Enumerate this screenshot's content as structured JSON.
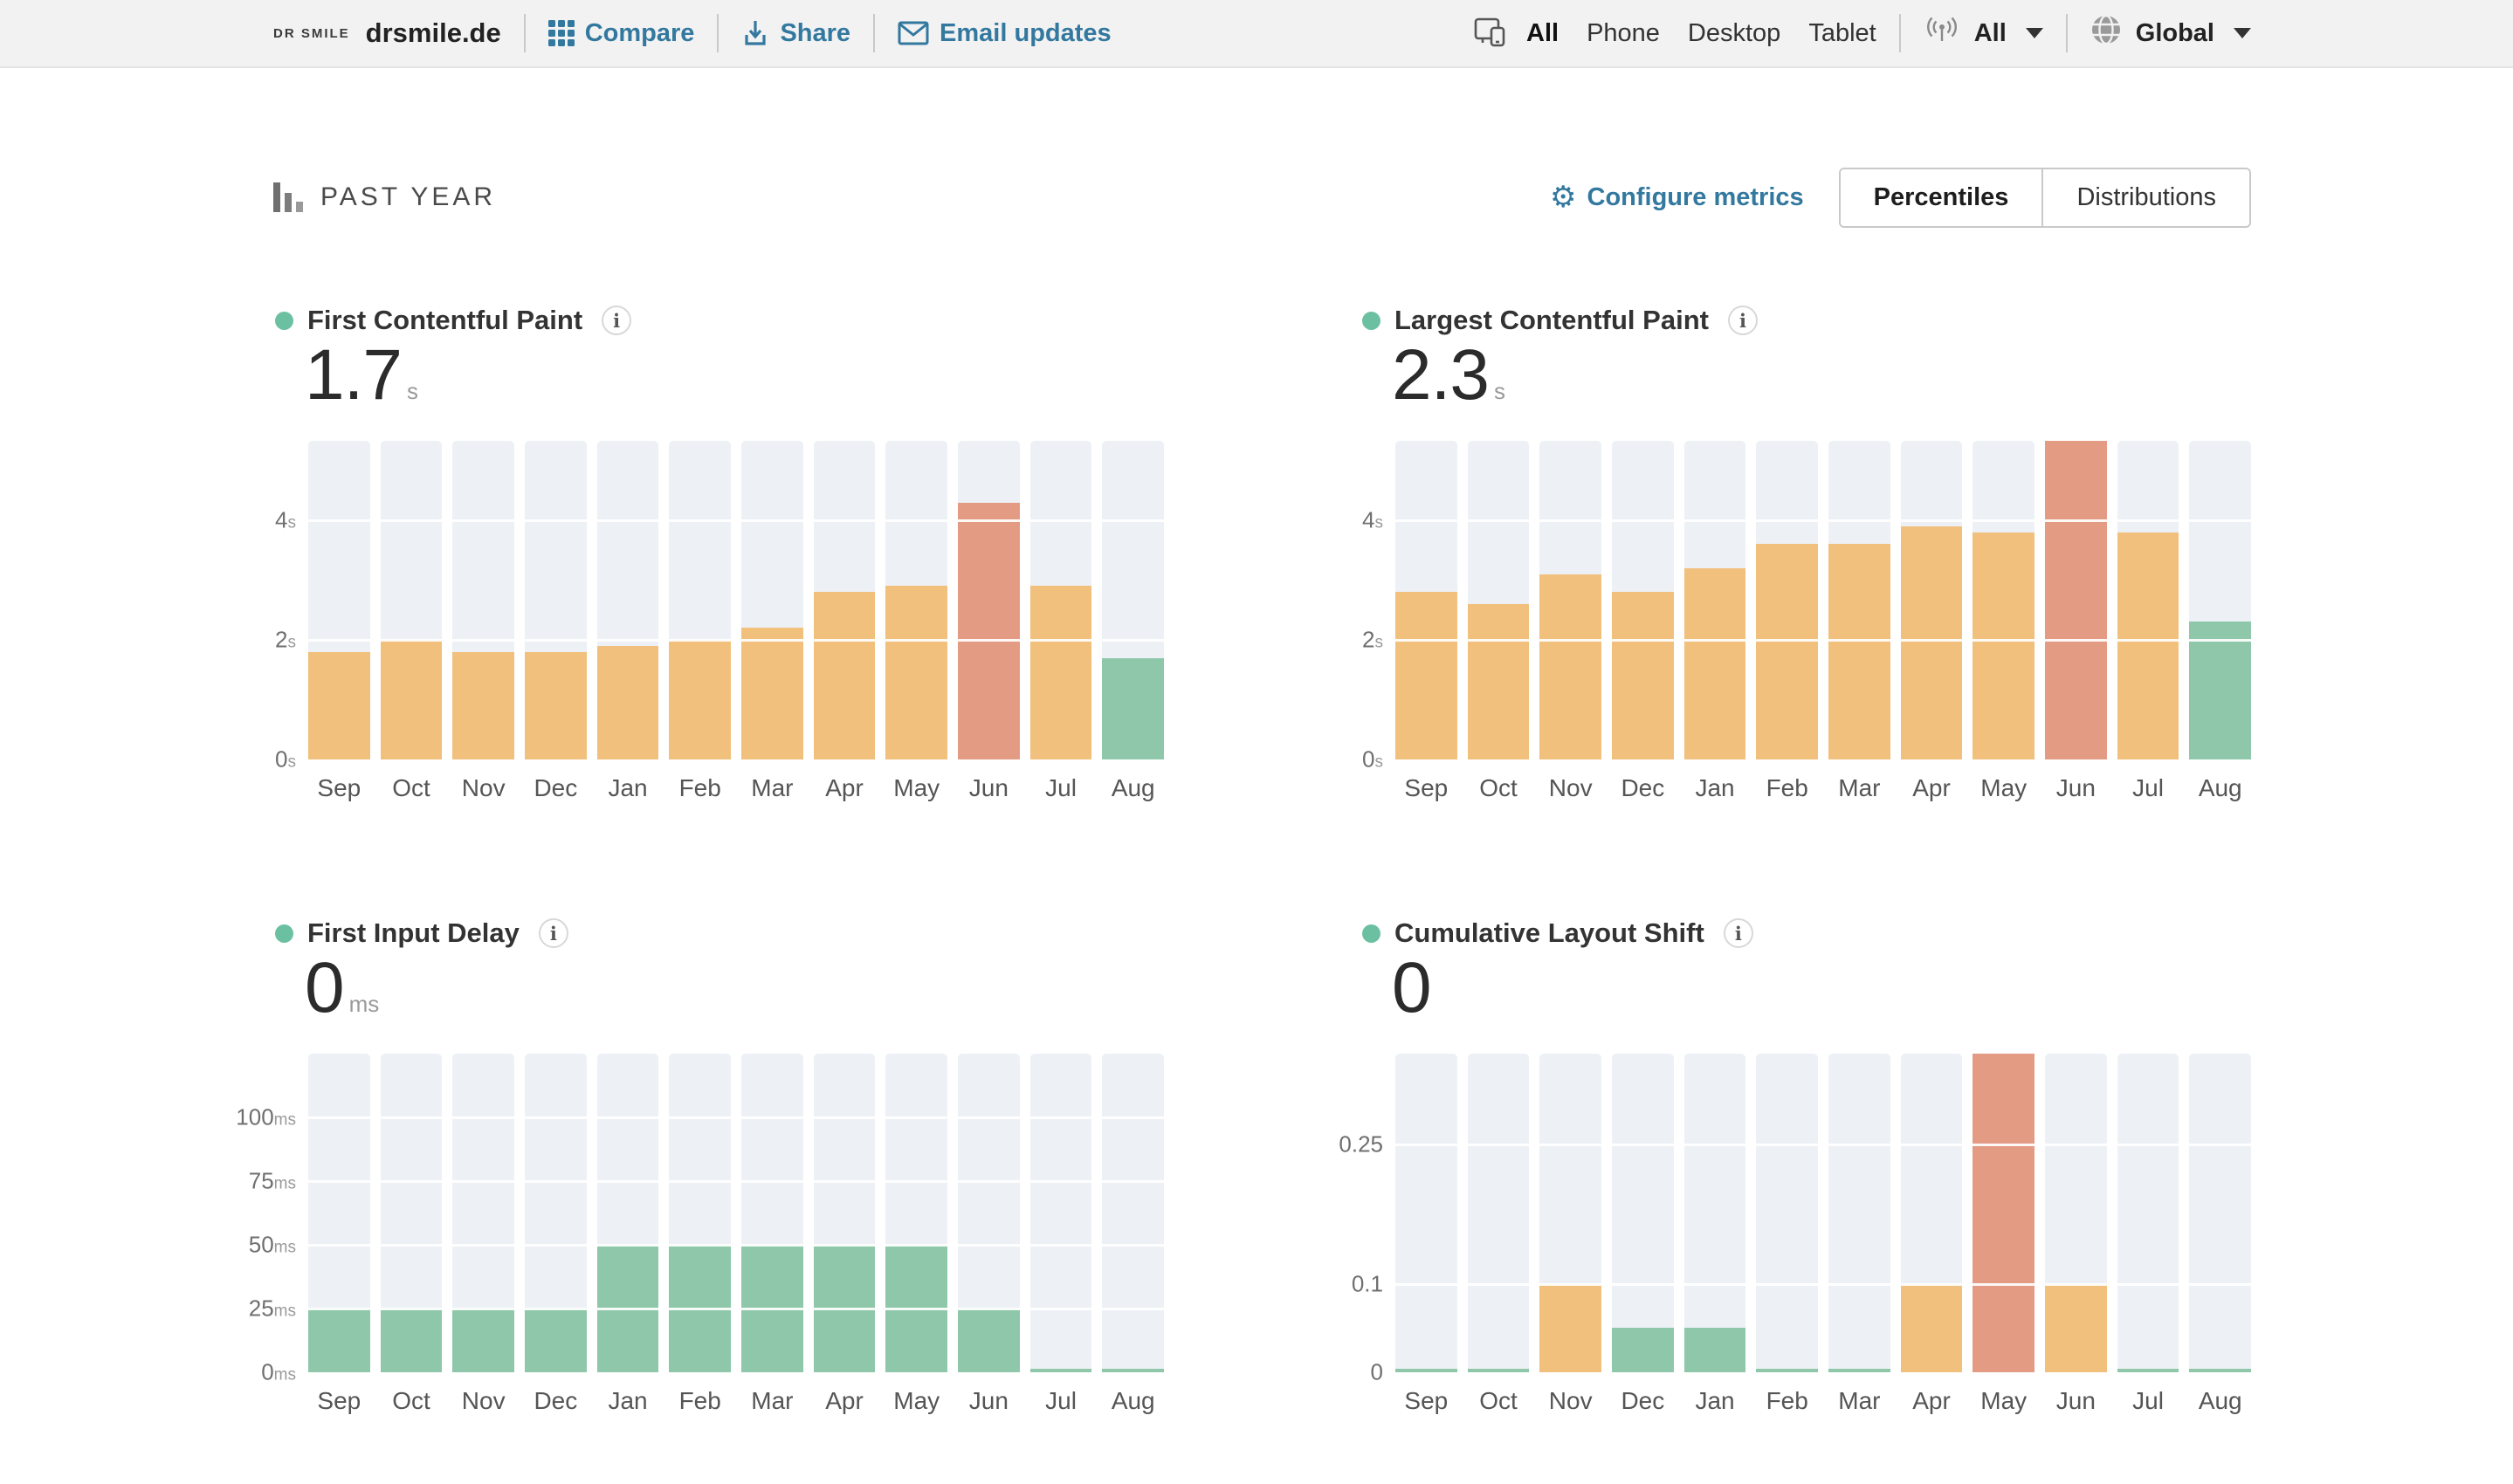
{
  "topbar": {
    "logo_mark": "DR SMILE",
    "site_name": "drsmile.de",
    "links": [
      {
        "icon": "grid-icon",
        "label": "Compare"
      },
      {
        "icon": "download-icon",
        "label": "Share"
      },
      {
        "icon": "envelope-icon",
        "label": "Email updates"
      }
    ],
    "device_filter": {
      "options": [
        "All",
        "Phone",
        "Desktop",
        "Tablet"
      ],
      "selected": "All"
    },
    "connection_filter": {
      "selected": "All"
    },
    "region_filter": {
      "selected": "Global"
    }
  },
  "toolbar": {
    "period_label": "PAST YEAR",
    "configure_label": "Configure metrics",
    "view_toggle": {
      "options": [
        "Percentiles",
        "Distributions"
      ],
      "selected": "Percentiles"
    }
  },
  "colors": {
    "accent_blue": "#33789f",
    "track": "#edf1f5",
    "metric_dot": "#6cc0a2",
    "status": {
      "good": "#8ec7aa",
      "needs-improvement": "#f0c07c",
      "poor": "#e39b84"
    }
  },
  "chart_data": [
    {
      "type": "bar",
      "title": "First Contentful Paint",
      "current_value": "1.7",
      "unit": "s",
      "categories": [
        "Sep",
        "Oct",
        "Nov",
        "Dec",
        "Jan",
        "Feb",
        "Mar",
        "Apr",
        "May",
        "Jun",
        "Jul",
        "Aug"
      ],
      "values": [
        1.8,
        2.0,
        1.8,
        1.8,
        1.9,
        2.0,
        2.2,
        2.8,
        2.9,
        4.3,
        2.9,
        1.7
      ],
      "statuses": [
        "needs-improvement",
        "needs-improvement",
        "needs-improvement",
        "needs-improvement",
        "needs-improvement",
        "needs-improvement",
        "needs-improvement",
        "needs-improvement",
        "needs-improvement",
        "poor",
        "needs-improvement",
        "good"
      ],
      "ticks": [
        {
          "value": 0,
          "label": "0",
          "unit": "s"
        },
        {
          "value": 2,
          "label": "2",
          "unit": "s"
        },
        {
          "value": 4,
          "label": "4",
          "unit": "s"
        }
      ],
      "ylim": [
        0,
        5.33
      ],
      "scale_anchors": [
        {
          "v": 0,
          "f": 0
        },
        {
          "v": 5.33,
          "f": 1
        }
      ],
      "grid": true,
      "legend": "none"
    },
    {
      "type": "bar",
      "title": "Largest Contentful Paint",
      "current_value": "2.3",
      "unit": "s",
      "categories": [
        "Sep",
        "Oct",
        "Nov",
        "Dec",
        "Jan",
        "Feb",
        "Mar",
        "Apr",
        "May",
        "Jun",
        "Jul",
        "Aug"
      ],
      "values": [
        2.8,
        2.6,
        3.1,
        2.8,
        3.2,
        3.6,
        3.6,
        3.9,
        3.8,
        5.4,
        3.8,
        2.3
      ],
      "statuses": [
        "needs-improvement",
        "needs-improvement",
        "needs-improvement",
        "needs-improvement",
        "needs-improvement",
        "needs-improvement",
        "needs-improvement",
        "needs-improvement",
        "needs-improvement",
        "poor",
        "needs-improvement",
        "good"
      ],
      "ticks": [
        {
          "value": 0,
          "label": "0",
          "unit": "s"
        },
        {
          "value": 2,
          "label": "2",
          "unit": "s"
        },
        {
          "value": 4,
          "label": "4",
          "unit": "s"
        }
      ],
      "ylim": [
        0,
        5.33
      ],
      "scale_anchors": [
        {
          "v": 0,
          "f": 0
        },
        {
          "v": 5.33,
          "f": 1
        }
      ],
      "grid": true,
      "legend": "none"
    },
    {
      "type": "bar",
      "title": "First Input Delay",
      "current_value": "0",
      "unit": "ms",
      "categories": [
        "Sep",
        "Oct",
        "Nov",
        "Dec",
        "Jan",
        "Feb",
        "Mar",
        "Apr",
        "May",
        "Jun",
        "Jul",
        "Aug"
      ],
      "values": [
        25,
        25,
        25,
        25,
        50,
        50,
        50,
        50,
        50,
        25,
        0,
        0
      ],
      "statuses": [
        "good",
        "good",
        "good",
        "good",
        "good",
        "good",
        "good",
        "good",
        "good",
        "good",
        "good",
        "good"
      ],
      "ticks": [
        {
          "value": 0,
          "label": "0",
          "unit": "ms"
        },
        {
          "value": 25,
          "label": "25",
          "unit": "ms"
        },
        {
          "value": 50,
          "label": "50",
          "unit": "ms"
        },
        {
          "value": 75,
          "label": "75",
          "unit": "ms"
        },
        {
          "value": 100,
          "label": "100",
          "unit": "ms"
        }
      ],
      "ylim": [
        0,
        125
      ],
      "scale_anchors": [
        {
          "v": 0,
          "f": 0
        },
        {
          "v": 125,
          "f": 1
        }
      ],
      "grid": true,
      "legend": "none"
    },
    {
      "type": "bar",
      "title": "Cumulative Layout Shift",
      "current_value": "0",
      "unit": "",
      "categories": [
        "Sep",
        "Oct",
        "Nov",
        "Dec",
        "Jan",
        "Feb",
        "Mar",
        "Apr",
        "May",
        "Jun",
        "Jul",
        "Aug"
      ],
      "values": [
        0,
        0,
        0.1,
        0.05,
        0.05,
        0,
        0,
        0.1,
        0.4,
        0.1,
        0,
        0
      ],
      "statuses": [
        "good",
        "good",
        "needs-improvement",
        "good",
        "good",
        "good",
        "good",
        "needs-improvement",
        "poor",
        "needs-improvement",
        "good",
        "good"
      ],
      "ticks": [
        {
          "value": 0,
          "label": "0",
          "unit": ""
        },
        {
          "value": 0.1,
          "label": "0.1",
          "unit": ""
        },
        {
          "value": 0.25,
          "label": "0.25",
          "unit": ""
        }
      ],
      "ylim": [
        0,
        0.4
      ],
      "scale_anchors": [
        {
          "v": 0,
          "f": 0
        },
        {
          "v": 0.1,
          "f": 0.277
        },
        {
          "v": 0.25,
          "f": 0.715
        },
        {
          "v": 0.4,
          "f": 1
        }
      ],
      "grid": true,
      "legend": "none"
    }
  ]
}
